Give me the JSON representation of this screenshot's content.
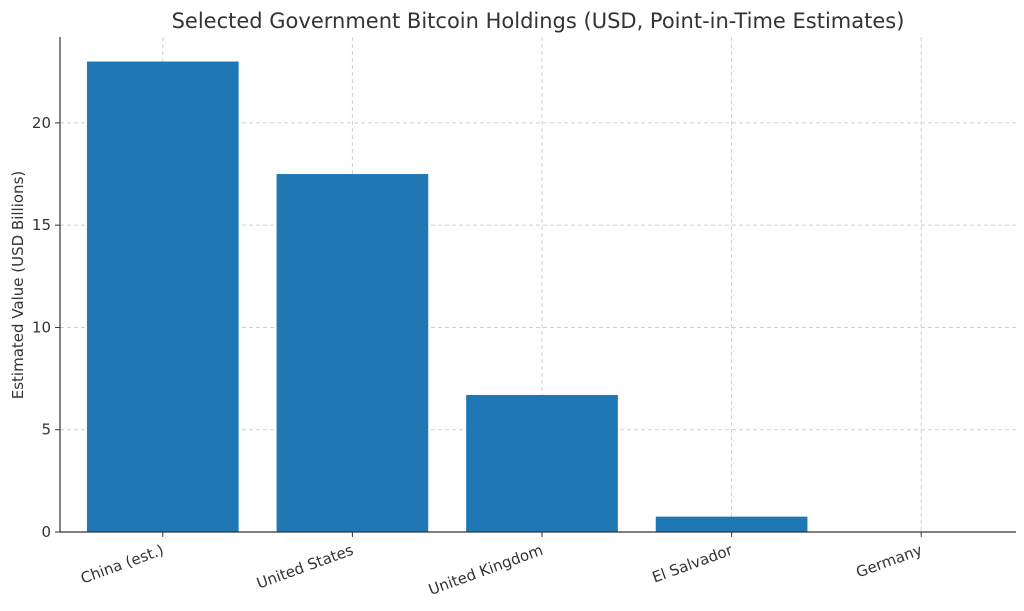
{
  "chart_data": {
    "type": "bar",
    "title": "Selected Government Bitcoin Holdings (USD, Point-in-Time Estimates)",
    "xlabel": "",
    "ylabel": "Estimated Value (USD Billions)",
    "categories": [
      "China (est.)",
      "United States",
      "United Kingdom",
      "El Salvador",
      "Germany"
    ],
    "values": [
      23.0,
      17.5,
      6.7,
      0.75,
      0.0
    ],
    "ylim": [
      0,
      24.2
    ],
    "yticks": [
      0,
      5,
      10,
      15,
      20
    ],
    "grid": true,
    "bar_color": "#1f77b4",
    "x_tick_rotation": "slanted"
  }
}
